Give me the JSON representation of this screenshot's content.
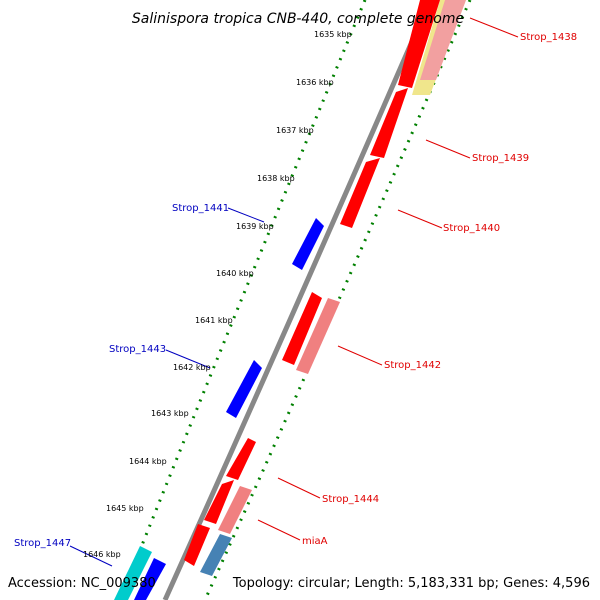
{
  "title": "Salinispora tropica CNB-440, complete genome",
  "footer": {
    "accession": "Accession: NC_009380",
    "topology": "Topology: circular; Length: 5,183,331 bp; Genes: 4,596"
  },
  "kbp_labels": [
    "1635 kbp",
    "1636 kbp",
    "1637 kbp",
    "1638 kbp",
    "1639 kbp",
    "1640 kbp",
    "1641 kbp",
    "1642 kbp",
    "1643 kbp",
    "1644 kbp",
    "1645 kbp",
    "1646 kbp"
  ],
  "gene_labels": {
    "strop_1438": "Strop_1438",
    "strop_1439": "Strop_1439",
    "strop_1440": "Strop_1440",
    "strop_1441": "Strop_1441",
    "strop_1442": "Strop_1442",
    "strop_1443": "Strop_1443",
    "strop_1444": "Strop_1444",
    "miaA": "miaA",
    "strop_1447": "Strop_1447"
  },
  "colors": {
    "forward_cds": "#ff0000",
    "forward_cds_light": "#f08080",
    "reverse_cds": "#0000ff",
    "rna": "#00cccc",
    "highlight": "#f0e68c",
    "backbone": "#808080",
    "ruler_dots": "#008000",
    "label_red": "#e00000",
    "label_blue": "#0000c0"
  }
}
